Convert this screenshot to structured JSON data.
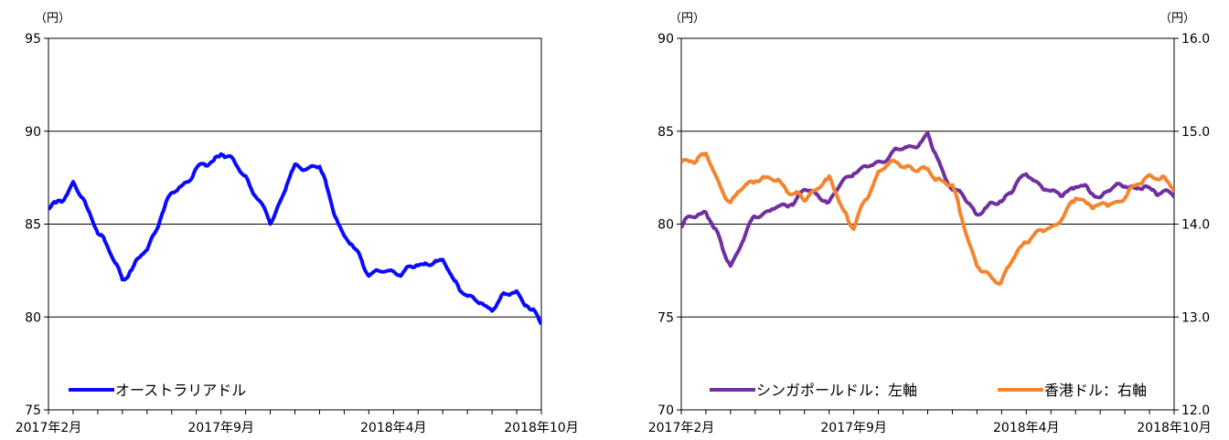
{
  "chart_data": [
    {
      "type": "line",
      "y_unit": "（円）",
      "ylim": [
        75,
        95
      ],
      "y_ticks": [
        "75",
        "80",
        "85",
        "90",
        "95"
      ],
      "x_labels": [
        "2017年2月",
        "2017年9月",
        "2018年4月",
        "2018年10月"
      ],
      "grid": true,
      "legend_position": "bottom-left",
      "series": [
        {
          "name": "オーストラリアドル",
          "color": "#0a0aff",
          "x": [
            "2017-02",
            "2017-03",
            "2017-04",
            "2017-05",
            "2017-06",
            "2017-07",
            "2017-08",
            "2017-09",
            "2017-10",
            "2017-11",
            "2017-12",
            "2018-01",
            "2018-02",
            "2018-03",
            "2018-04",
            "2018-05",
            "2018-06",
            "2018-07",
            "2018-08",
            "2018-09",
            "2018-10"
          ],
          "values": [
            85.8,
            87.3,
            84.5,
            82.3,
            83.6,
            86.5,
            88.1,
            88.7,
            87.6,
            85.3,
            87.8,
            88.2,
            84.4,
            82.2,
            82.6,
            82.7,
            82.8,
            81.3,
            80.3,
            81.5,
            79.8
          ]
        }
      ]
    },
    {
      "type": "line",
      "y_unit_left": "（円）",
      "y_unit_right": "（円）",
      "ylim": [
        70,
        90
      ],
      "ylim_right": [
        12.0,
        16.0
      ],
      "y_ticks": [
        "70",
        "75",
        "80",
        "85",
        "90"
      ],
      "y_ticks_right": [
        "12.0",
        "13.0",
        "14.0",
        "15.0",
        "16.0"
      ],
      "x_labels": [
        "2017年2月",
        "2017年9月",
        "2018年4月",
        "2018年10月"
      ],
      "grid": true,
      "legend_position": "bottom",
      "series": [
        {
          "name": "シンガポールドル：左軸",
          "axis": "left",
          "color": "#7030a0",
          "x": [
            "2017-02",
            "2017-03",
            "2017-04",
            "2017-05",
            "2017-06",
            "2017-07",
            "2017-08",
            "2017-09",
            "2017-10",
            "2017-11",
            "2017-12",
            "2018-01",
            "2018-02",
            "2018-03",
            "2018-04",
            "2018-05",
            "2018-06",
            "2018-07",
            "2018-08",
            "2018-09",
            "2018-10"
          ],
          "values": [
            79.8,
            80.6,
            78.0,
            80.3,
            80.8,
            82.0,
            81.0,
            83.0,
            83.4,
            83.8,
            84.9,
            81.8,
            80.5,
            81.5,
            82.5,
            81.6,
            82.2,
            81.3,
            82.3,
            81.9,
            81.3
          ]
        },
        {
          "name": "香港ドル：右軸",
          "axis": "right",
          "color": "#f4842e",
          "x": [
            "2017-02",
            "2017-03",
            "2017-04",
            "2017-05",
            "2017-06",
            "2017-07",
            "2017-08",
            "2017-09",
            "2017-10",
            "2017-11",
            "2017-12",
            "2018-01",
            "2018-02",
            "2018-03",
            "2018-04",
            "2018-05",
            "2018-06",
            "2018-07",
            "2018-08",
            "2018-09",
            "2018-10"
          ],
          "values": [
            14.6,
            14.75,
            14.25,
            14.45,
            14.5,
            14.25,
            14.45,
            14.0,
            14.55,
            14.65,
            14.6,
            14.35,
            13.55,
            13.4,
            13.8,
            14.0,
            14.25,
            14.15,
            14.35,
            14.5,
            14.38
          ]
        }
      ]
    }
  ]
}
